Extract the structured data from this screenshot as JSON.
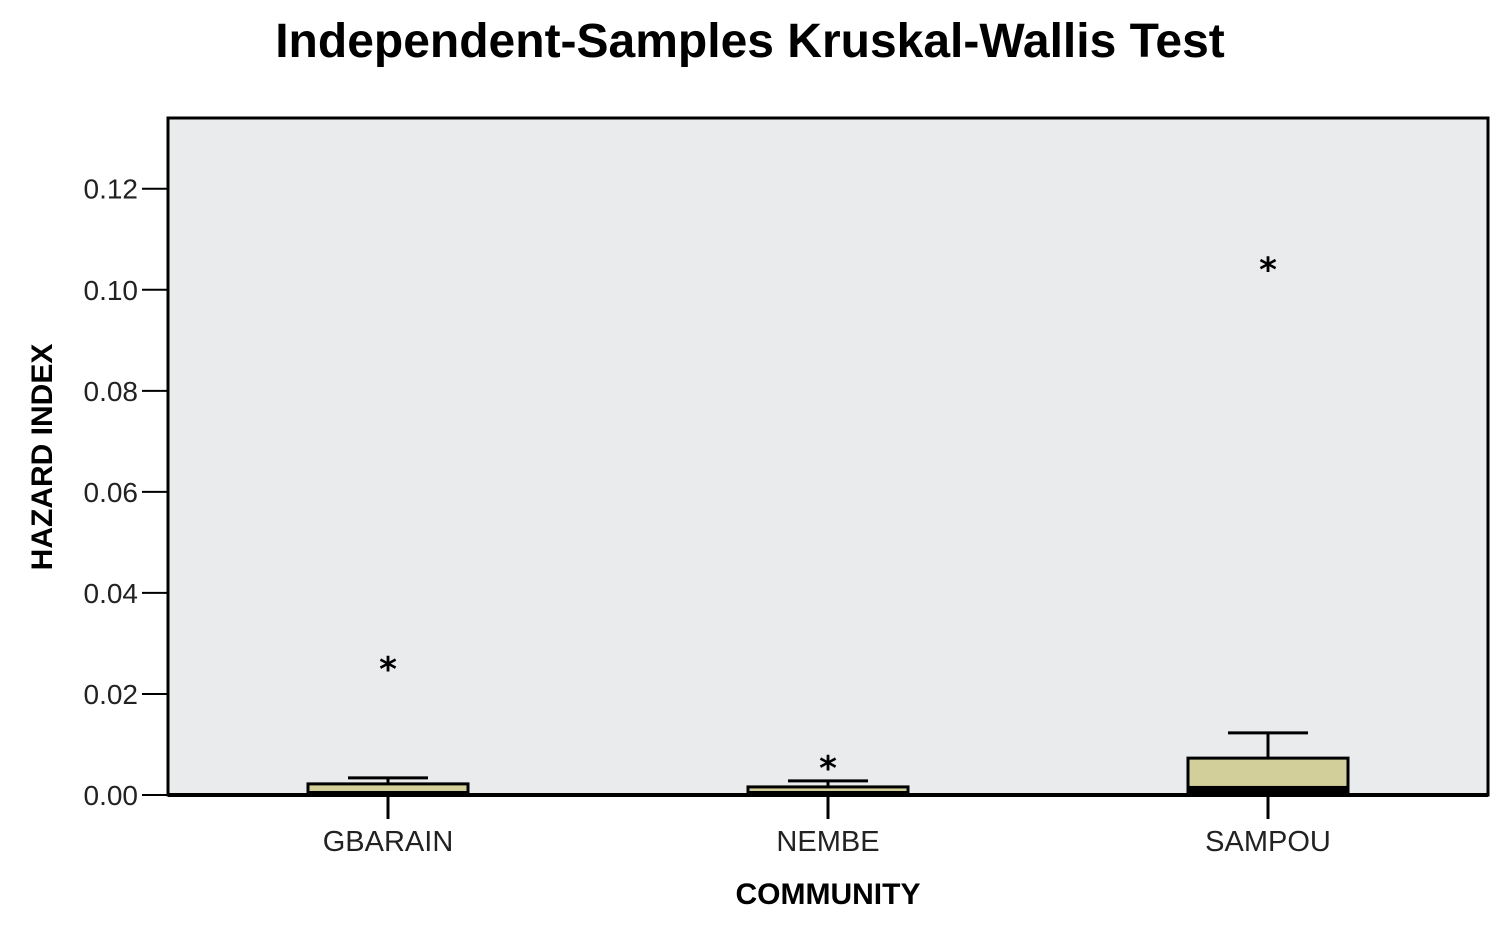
{
  "chart_data": {
    "type": "boxplot",
    "title": "Independent-Samples Kruskal-Wallis Test",
    "xlabel": "COMMUNITY",
    "ylabel": "HAZARD INDEX",
    "ylim": [
      0,
      0.134
    ],
    "yticks": [
      "0.00",
      "0.02",
      "0.04",
      "0.06",
      "0.08",
      "0.10",
      "0.12"
    ],
    "grid": false,
    "categories": [
      "GBARAIN",
      "NEMBE",
      "SAMPOU"
    ],
    "boxes": [
      {
        "category": "GBARAIN",
        "min": 0.0,
        "q1": 0.0,
        "median": 0.0002,
        "q3": 0.0022,
        "whisker_high": 0.0034,
        "outliers": [
          0.0257
        ]
      },
      {
        "category": "NEMBE",
        "min": 0.0,
        "q1": 0.0,
        "median": 0.0002,
        "q3": 0.0016,
        "whisker_high": 0.0028,
        "outliers": [
          0.0061
        ]
      },
      {
        "category": "SAMPOU",
        "min": 0.0,
        "q1": 0.0,
        "median": 0.0012,
        "q3": 0.0073,
        "whisker_high": 0.0123,
        "outliers": [
          0.1048
        ]
      }
    ],
    "colors": {
      "plot_bg": "#EAEBED",
      "box_fill": "#D3CF9A",
      "stroke": "#000000"
    }
  }
}
